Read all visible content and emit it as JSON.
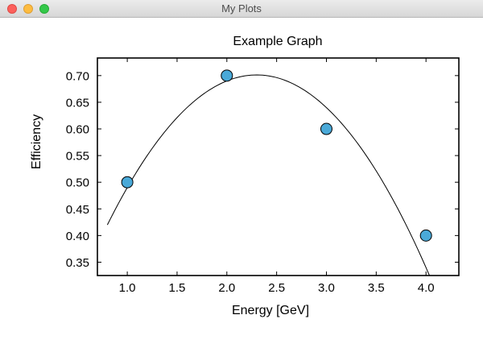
{
  "window": {
    "title": "My Plots"
  },
  "chart_data": {
    "type": "scatter",
    "title": "Example Graph",
    "xlabel": "Energy [GeV]",
    "ylabel": "Efficiency",
    "xlim": [
      0.7,
      4.33
    ],
    "ylim": [
      0.325,
      0.733
    ],
    "xticks": [
      1.0,
      1.5,
      2.0,
      2.5,
      3.0,
      3.5,
      4.0
    ],
    "xtick_labels": [
      "1.0",
      "1.5",
      "2.0",
      "2.5",
      "3.0",
      "3.5",
      "4.0"
    ],
    "yticks": [
      0.35,
      0.4,
      0.45,
      0.5,
      0.55,
      0.6,
      0.65,
      0.7
    ],
    "ytick_labels": [
      "0.35",
      "0.40",
      "0.45",
      "0.50",
      "0.55",
      "0.60",
      "0.65",
      "0.70"
    ],
    "grid": false,
    "series": [
      {
        "type": "scatter",
        "x": [
          1.0,
          2.0,
          3.0,
          4.0
        ],
        "y": [
          0.5,
          0.7,
          0.6,
          0.4
        ],
        "color": "#4aa9d8"
      },
      {
        "type": "line",
        "fit": "quadratic",
        "coefficients": [
          -0.125,
          0.575,
          0.04
        ],
        "x_range": [
          0.8,
          4.2
        ],
        "color": "#000000"
      }
    ]
  }
}
